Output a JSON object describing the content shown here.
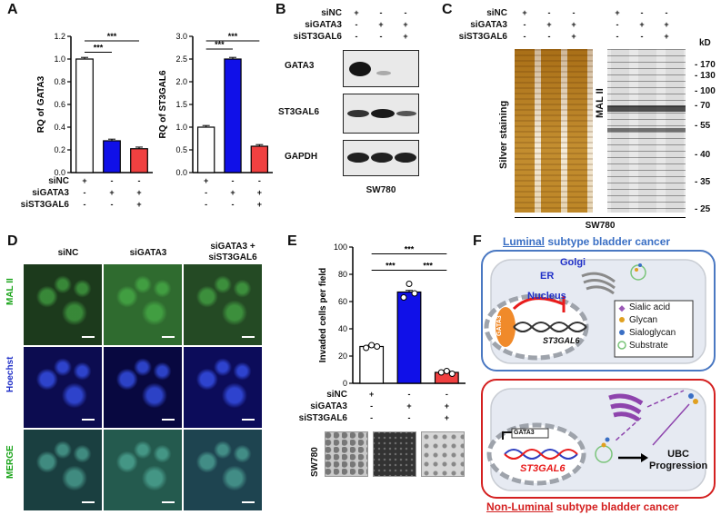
{
  "panels": {
    "A": "A",
    "B": "B",
    "C": "C",
    "D": "D",
    "E": "E",
    "F": "F"
  },
  "treat": {
    "siNC": "siNC",
    "siGATA3": "siGATA3",
    "siST3GAL6": "siST3GAL6",
    "plus": "+",
    "minus": "-"
  },
  "sig": {
    "three": "***"
  },
  "chart_data": [
    {
      "type": "bar",
      "categories": [
        "siNC",
        "siGATA3",
        "siGATA3 + siST3GAL6"
      ],
      "values": [
        1.0,
        0.28,
        0.21
      ],
      "ylabel": "RQ of GATA3",
      "yticks": [
        "0.0",
        "0.2",
        "0.4",
        "0.6",
        "0.8",
        "1.0",
        "1.2"
      ],
      "ylim": [
        0,
        1.2
      ],
      "colors": [
        "#ffffff",
        "#1010e8",
        "#f04040"
      ]
    },
    {
      "type": "bar",
      "categories": [
        "siNC",
        "siGATA3",
        "siGATA3 + siST3GAL6"
      ],
      "values": [
        1.0,
        2.5,
        0.58
      ],
      "ylabel": "RQ of ST3GAL6",
      "yticks": [
        "0.0",
        "0.5",
        "1.0",
        "1.5",
        "2.0",
        "2.5",
        "3.0"
      ],
      "ylim": [
        0,
        3.0
      ],
      "colors": [
        "#ffffff",
        "#1010e8",
        "#f04040"
      ]
    },
    {
      "type": "bar",
      "categories": [
        "siNC",
        "siGATA3",
        "siGATA3 + siST3GAL6"
      ],
      "values": [
        27,
        67,
        8
      ],
      "points": [
        [
          26,
          28,
          27
        ],
        [
          63,
          73,
          66
        ],
        [
          8,
          9,
          7
        ]
      ],
      "ylabel": "Invaded cells per field",
      "yticks": [
        "0",
        "20",
        "40",
        "60",
        "80",
        "100"
      ],
      "ylim": [
        0,
        100
      ],
      "colors": [
        "#ffffff",
        "#1010e8",
        "#f04040"
      ]
    }
  ],
  "blot": {
    "rows": [
      "GATA3",
      "ST3GAL6",
      "GAPDH"
    ],
    "cell": "SW780"
  },
  "gelC": {
    "silver": "Silver staining",
    "mal": "MAL II",
    "kd_unit": "kD",
    "markers": [
      "170",
      "130",
      "100",
      "70",
      "55",
      "40",
      "35",
      "25"
    ],
    "cell": "SW780"
  },
  "micro": {
    "cols": [
      "siNC",
      "siGATA3",
      "siGATA3 +\nsiST3GAL6"
    ],
    "rows": [
      "MAL II",
      "Hoechst",
      "MERGE"
    ]
  },
  "sideE": "SW780",
  "schematic": {
    "luminal_a": "Luminal",
    "luminal_b": " subtype bladder cancer",
    "nonlum_a": "Non-Luminal",
    "nonlum_b": " subtype bladder cancer",
    "golgi": "Golgi",
    "er": "ER",
    "nucleus": "Nucleus",
    "gata3": "GATA3",
    "gene": "ST3GAL6",
    "legend": [
      "Sialic acid",
      "Glycan",
      "Sialoglycan",
      "Substrate"
    ],
    "ubc": "UBC\nProgression"
  }
}
